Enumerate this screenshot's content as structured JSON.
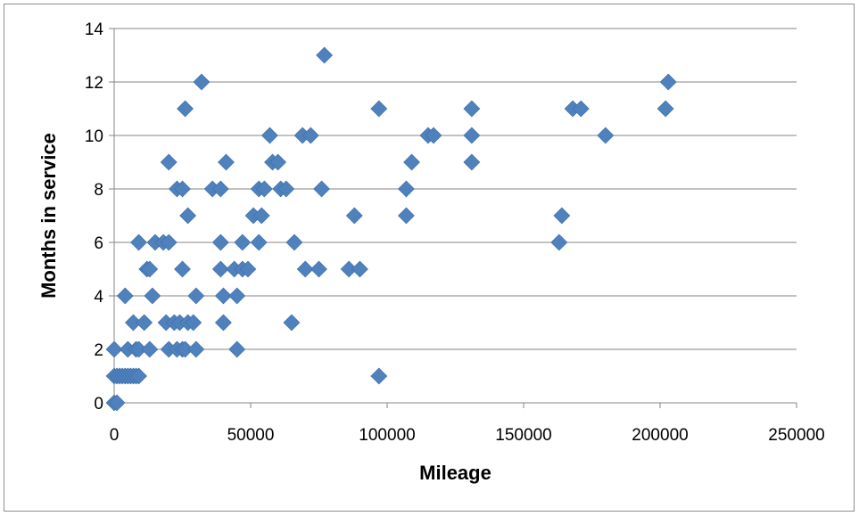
{
  "chart_data": {
    "type": "scatter",
    "title": "",
    "xlabel": "Mileage",
    "ylabel": "Months in service",
    "xlim": [
      0,
      250000
    ],
    "ylim": [
      0,
      14
    ],
    "x_ticks": [
      0,
      50000,
      100000,
      150000,
      200000,
      250000
    ],
    "y_ticks": [
      0,
      2,
      4,
      6,
      8,
      10,
      12,
      14
    ],
    "x_tick_labels": [
      "0",
      "50000",
      "100000",
      "150000",
      "200000",
      "250000"
    ],
    "y_tick_labels": [
      "0",
      "2",
      "4",
      "6",
      "8",
      "10",
      "12",
      "14"
    ],
    "grid": "horizontal",
    "legend": "none",
    "marker": "diamond",
    "marker_color": "#4f81bd",
    "points": [
      [
        0,
        0
      ],
      [
        1000,
        0
      ],
      [
        0,
        1
      ],
      [
        0,
        2
      ],
      [
        1000,
        1
      ],
      [
        2000,
        1
      ],
      [
        3000,
        1
      ],
      [
        4000,
        1
      ],
      [
        5000,
        1
      ],
      [
        6000,
        1
      ],
      [
        7000,
        1
      ],
      [
        8000,
        1
      ],
      [
        9000,
        1
      ],
      [
        4000,
        4
      ],
      [
        5000,
        2
      ],
      [
        7000,
        3
      ],
      [
        8000,
        2
      ],
      [
        9000,
        2
      ],
      [
        9000,
        6
      ],
      [
        11000,
        3
      ],
      [
        12000,
        5
      ],
      [
        13000,
        2
      ],
      [
        13000,
        5
      ],
      [
        14000,
        4
      ],
      [
        15000,
        6
      ],
      [
        18000,
        6
      ],
      [
        19000,
        3
      ],
      [
        20000,
        6
      ],
      [
        20000,
        2
      ],
      [
        20000,
        9
      ],
      [
        22000,
        3
      ],
      [
        23000,
        2
      ],
      [
        23000,
        8
      ],
      [
        24000,
        3
      ],
      [
        25000,
        2
      ],
      [
        25000,
        5
      ],
      [
        25000,
        8
      ],
      [
        26000,
        11
      ],
      [
        26000,
        2
      ],
      [
        27000,
        7
      ],
      [
        27000,
        3
      ],
      [
        29000,
        3
      ],
      [
        30000,
        4
      ],
      [
        30000,
        2
      ],
      [
        32000,
        12
      ],
      [
        36000,
        8
      ],
      [
        39000,
        8
      ],
      [
        39000,
        5
      ],
      [
        39000,
        6
      ],
      [
        40000,
        4
      ],
      [
        40000,
        3
      ],
      [
        41000,
        9
      ],
      [
        44000,
        5
      ],
      [
        45000,
        4
      ],
      [
        45000,
        2
      ],
      [
        47000,
        6
      ],
      [
        47000,
        5
      ],
      [
        49000,
        5
      ],
      [
        51000,
        7
      ],
      [
        53000,
        6
      ],
      [
        53000,
        8
      ],
      [
        54000,
        7
      ],
      [
        55000,
        8
      ],
      [
        57000,
        10
      ],
      [
        58000,
        9
      ],
      [
        60000,
        9
      ],
      [
        61000,
        8
      ],
      [
        63000,
        8
      ],
      [
        65000,
        3
      ],
      [
        66000,
        6
      ],
      [
        69000,
        10
      ],
      [
        70000,
        5
      ],
      [
        72000,
        10
      ],
      [
        75000,
        5
      ],
      [
        76000,
        8
      ],
      [
        77000,
        13
      ],
      [
        86000,
        5
      ],
      [
        88000,
        7
      ],
      [
        90000,
        5
      ],
      [
        97000,
        11
      ],
      [
        97000,
        1
      ],
      [
        107000,
        7
      ],
      [
        107000,
        8
      ],
      [
        109000,
        9
      ],
      [
        115000,
        10
      ],
      [
        117000,
        10
      ],
      [
        131000,
        10
      ],
      [
        131000,
        11
      ],
      [
        131000,
        9
      ],
      [
        163000,
        6
      ],
      [
        164000,
        7
      ],
      [
        168000,
        11
      ],
      [
        171000,
        11
      ],
      [
        180000,
        10
      ],
      [
        202000,
        11
      ],
      [
        203000,
        12
      ]
    ]
  }
}
